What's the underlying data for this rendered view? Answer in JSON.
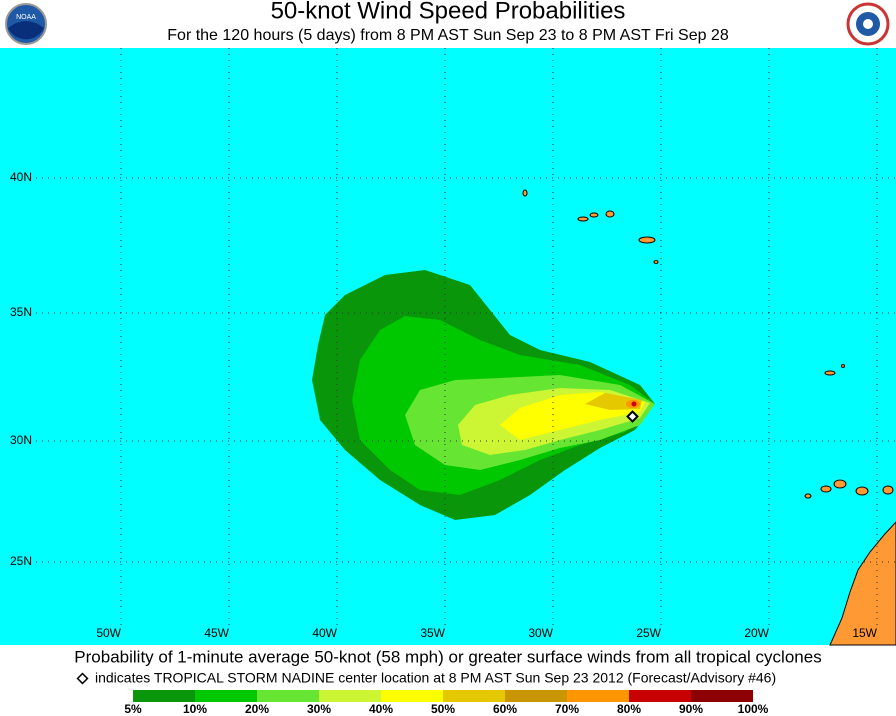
{
  "header": {
    "title": "50-knot Wind Speed Probabilities",
    "subtitle": "For the 120 hours (5 days) from 8 PM AST Sun Sep 23 to 8 PM AST Fri Sep 28"
  },
  "map": {
    "latitude_labels": [
      "40N",
      "35N",
      "30N",
      "25N"
    ],
    "longitude_labels": [
      "50W",
      "45W",
      "40W",
      "35W",
      "30W",
      "25W",
      "20W",
      "15W"
    ]
  },
  "footer": {
    "caption": "Probability of 1-minute average 50-knot (58 mph) or greater surface winds from all tropical cyclones",
    "marker_note": "indicates TROPICAL STORM NADINE center location at 8 PM AST Sun Sep 23 2012 (Forecast/Advisory #46)",
    "legend_labels": [
      "5%",
      "10%",
      "20%",
      "30%",
      "40%",
      "50%",
      "60%",
      "70%",
      "80%",
      "90%",
      "100%"
    ],
    "legend_colors": [
      "#0a960a",
      "#00c800",
      "#66e633",
      "#ccf533",
      "#ffff00",
      "#e6c800",
      "#c89600",
      "#ff9600",
      "#c80000",
      "#8c0000",
      "#960096"
    ]
  }
}
